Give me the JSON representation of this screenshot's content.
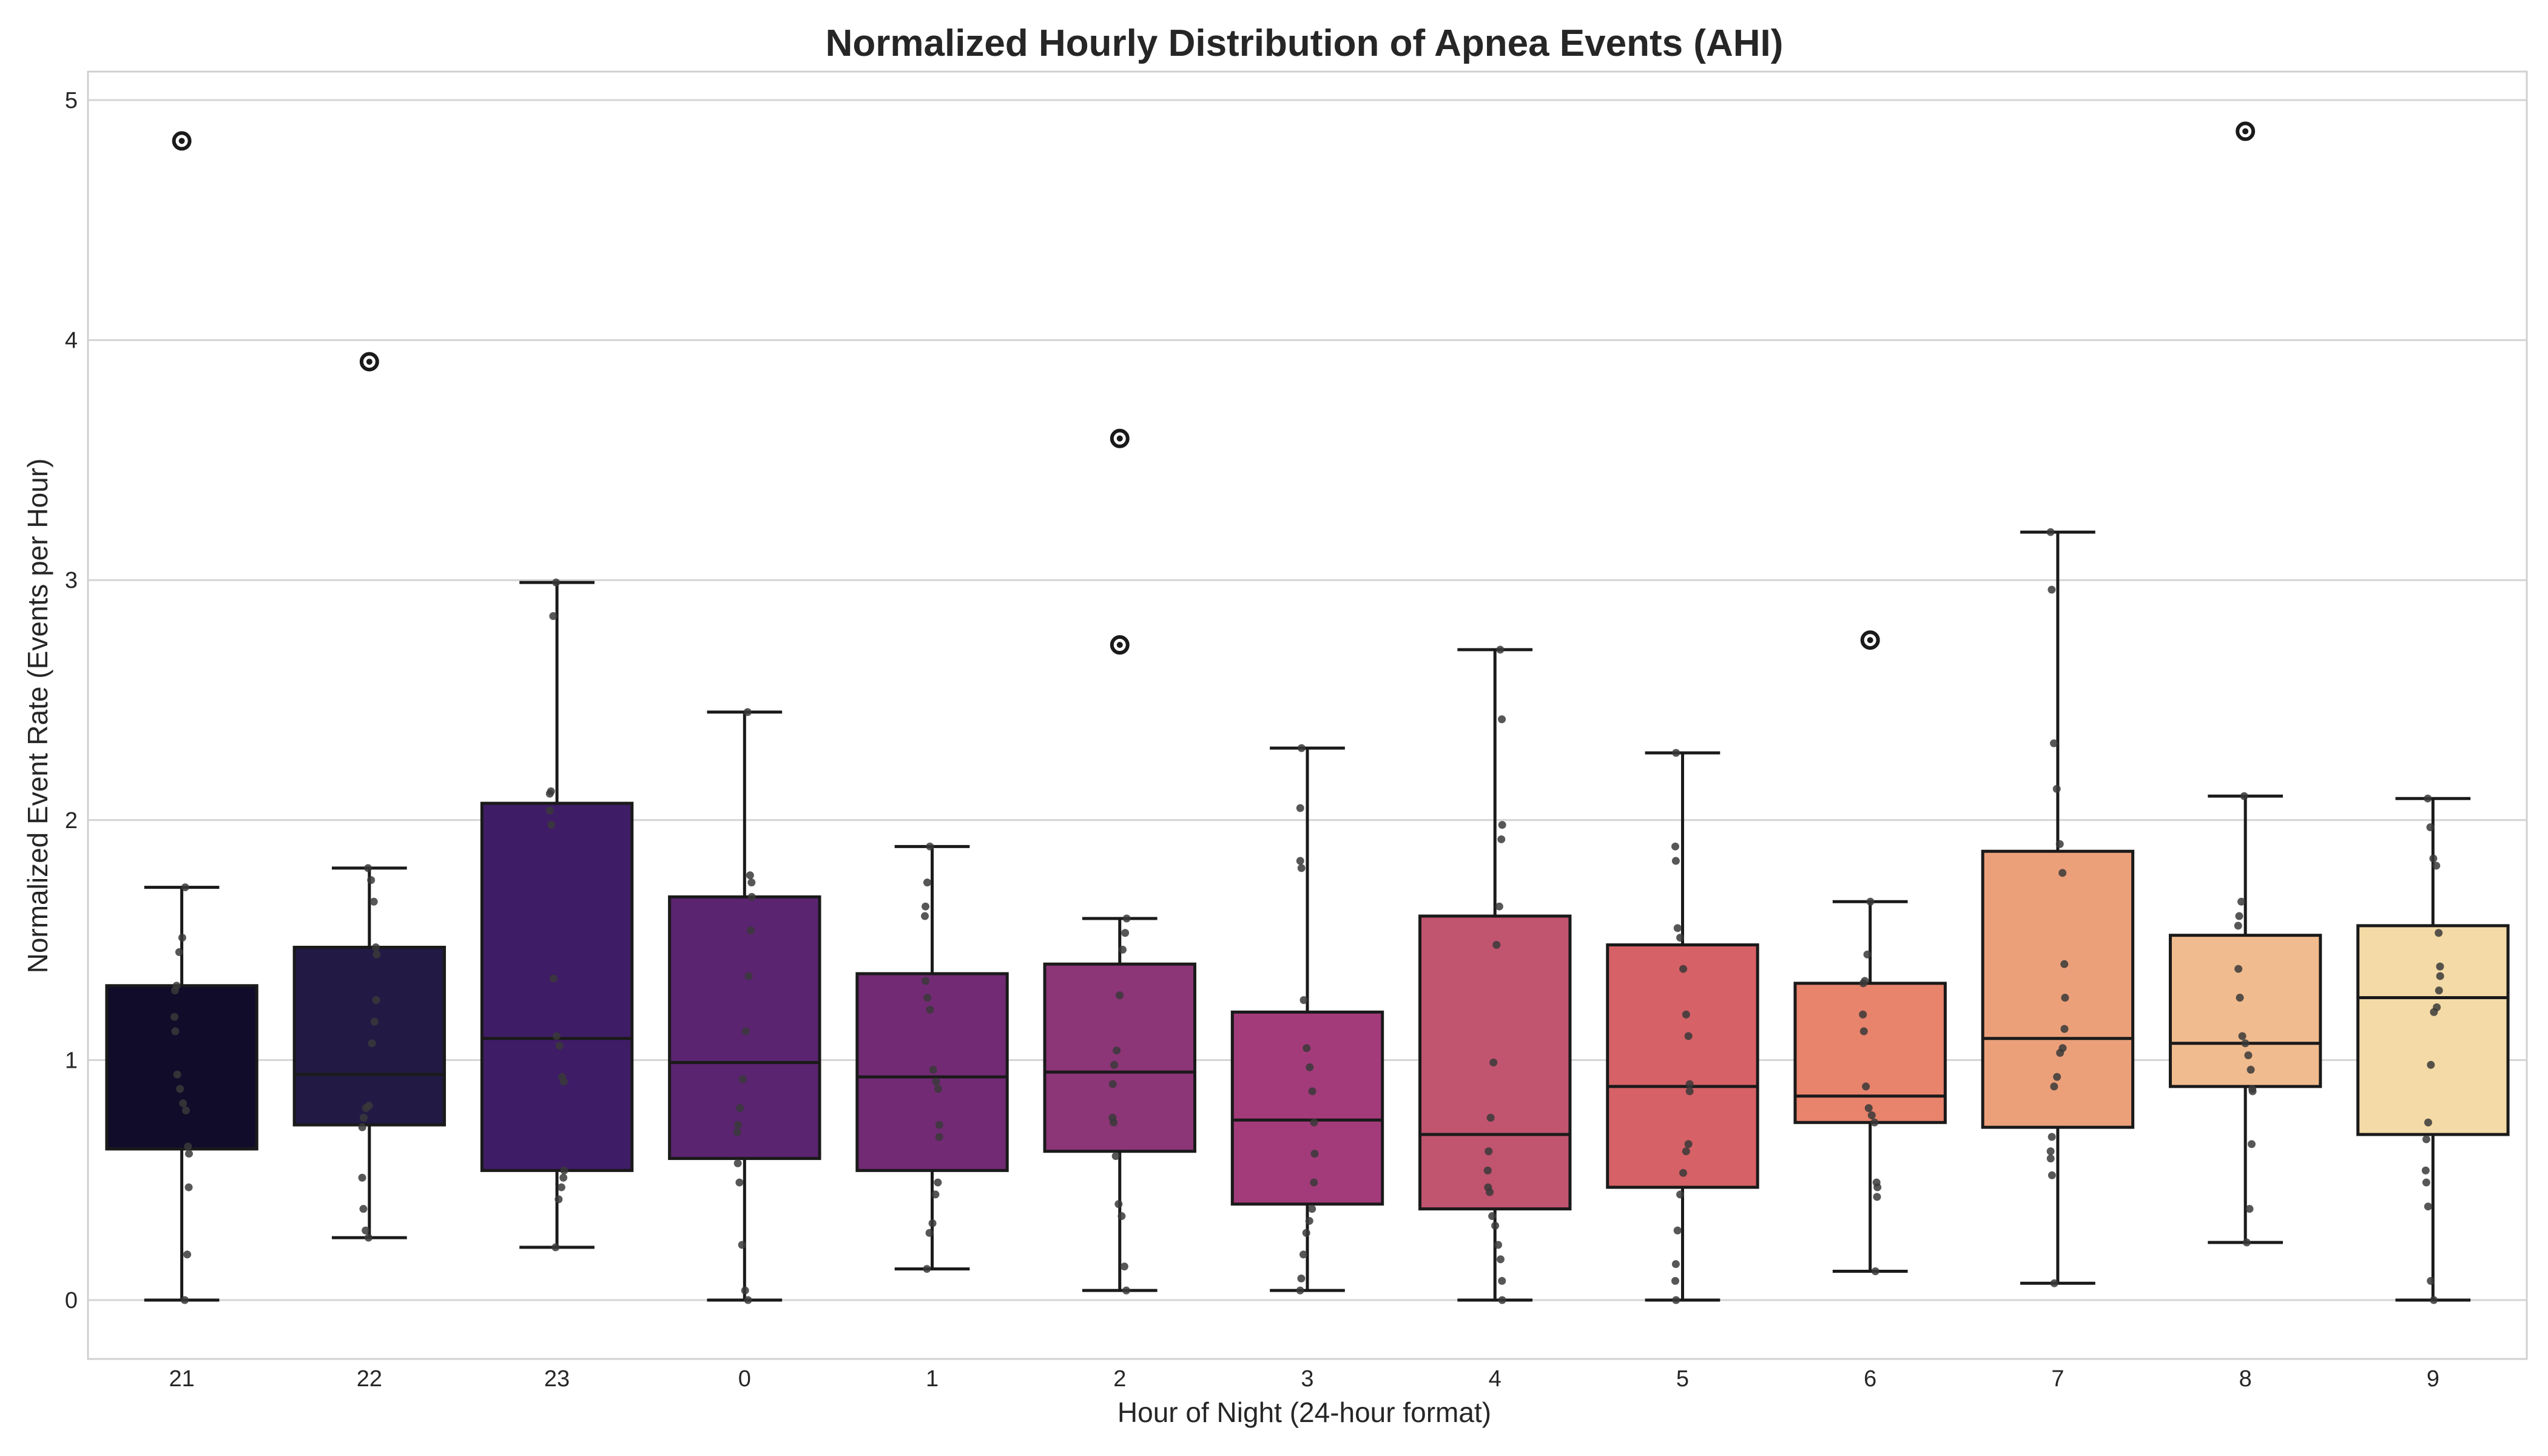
{
  "chart_data": {
    "type": "box",
    "title": "Normalized Hourly Distribution of Apnea Events (AHI)",
    "xlabel": "Hour of Night (24-hour format)",
    "ylabel": "Normalized Event Rate (Events per Hour)",
    "ylim": [
      -0.25,
      5.12
    ],
    "yticks": [
      0,
      1,
      2,
      3,
      4,
      5
    ],
    "grid": true,
    "categories": [
      "21",
      "22",
      "23",
      "0",
      "1",
      "2",
      "3",
      "4",
      "5",
      "6",
      "7",
      "8",
      "9"
    ],
    "colors": [
      "#100c2a",
      "#221a45",
      "#3f1c66",
      "#5a2470",
      "#722a74",
      "#8c3577",
      "#a33b7a",
      "#c1546f",
      "#d66166",
      "#e8836c",
      "#eca07a",
      "#f0bb8e",
      "#f3daa6"
    ],
    "boxes": [
      {
        "category": "21",
        "whisker_low": 0.0,
        "q1": 0.63,
        "median": 0.63,
        "q3": 1.31,
        "whisker_high": 1.72,
        "outliers": [
          4.83
        ],
        "points": [
          0.0,
          0.19,
          0.47,
          0.61,
          0.64,
          0.79,
          0.82,
          0.88,
          0.94,
          1.12,
          1.18,
          1.29,
          1.31,
          1.45,
          1.51,
          1.72
        ]
      },
      {
        "category": "22",
        "whisker_low": 0.26,
        "q1": 0.73,
        "median": 0.94,
        "q3": 1.47,
        "whisker_high": 1.8,
        "outliers": [
          3.91
        ],
        "points": [
          0.26,
          0.29,
          0.38,
          0.51,
          0.72,
          0.76,
          0.8,
          0.81,
          1.07,
          1.16,
          1.25,
          1.44,
          1.47,
          1.66,
          1.75,
          1.8
        ]
      },
      {
        "category": "23",
        "whisker_low": 0.22,
        "q1": 0.54,
        "median": 1.09,
        "q3": 2.07,
        "whisker_high": 2.99,
        "outliers": [],
        "points": [
          0.22,
          0.42,
          0.47,
          0.51,
          0.54,
          0.91,
          0.93,
          1.06,
          1.1,
          1.34,
          1.98,
          2.04,
          2.11,
          2.12,
          2.85,
          2.99
        ]
      },
      {
        "category": "0",
        "whisker_low": 0.0,
        "q1": 0.59,
        "median": 0.99,
        "q3": 1.68,
        "whisker_high": 2.45,
        "outliers": [],
        "points": [
          0.0,
          0.04,
          0.23,
          0.49,
          0.57,
          0.7,
          0.73,
          0.8,
          0.92,
          1.12,
          1.35,
          1.54,
          1.68,
          1.74,
          1.77,
          2.45
        ]
      },
      {
        "category": "1",
        "whisker_low": 0.13,
        "q1": 0.54,
        "median": 0.93,
        "q3": 1.36,
        "whisker_high": 1.89,
        "outliers": [],
        "points": [
          0.13,
          0.28,
          0.32,
          0.44,
          0.49,
          0.68,
          0.73,
          0.88,
          0.91,
          0.96,
          1.21,
          1.26,
          1.33,
          1.6,
          1.64,
          1.74,
          1.89
        ]
      },
      {
        "category": "2",
        "whisker_low": 0.04,
        "q1": 0.62,
        "median": 0.95,
        "q3": 1.4,
        "whisker_high": 1.59,
        "outliers": [
          3.59,
          2.73
        ],
        "points": [
          0.04,
          0.14,
          0.35,
          0.4,
          0.6,
          0.74,
          0.76,
          0.9,
          0.98,
          1.04,
          1.27,
          1.46,
          1.53,
          1.59
        ]
      },
      {
        "category": "3",
        "whisker_low": 0.04,
        "q1": 0.4,
        "median": 0.75,
        "q3": 1.2,
        "whisker_high": 2.3,
        "outliers": [],
        "points": [
          0.04,
          0.09,
          0.19,
          0.28,
          0.33,
          0.38,
          0.49,
          0.61,
          0.74,
          0.87,
          0.97,
          1.05,
          1.25,
          1.8,
          1.83,
          2.05,
          2.3
        ]
      },
      {
        "category": "4",
        "whisker_low": 0.0,
        "q1": 0.38,
        "median": 0.69,
        "q3": 1.6,
        "whisker_high": 2.71,
        "outliers": [],
        "points": [
          0.0,
          0.08,
          0.17,
          0.23,
          0.31,
          0.35,
          0.45,
          0.47,
          0.54,
          0.62,
          0.76,
          0.99,
          1.48,
          1.64,
          1.92,
          1.98,
          2.42,
          2.71
        ]
      },
      {
        "category": "5",
        "whisker_low": 0.0,
        "q1": 0.47,
        "median": 0.89,
        "q3": 1.48,
        "whisker_high": 2.28,
        "outliers": [],
        "points": [
          0.0,
          0.08,
          0.15,
          0.29,
          0.44,
          0.53,
          0.62,
          0.65,
          0.87,
          0.9,
          1.1,
          1.19,
          1.38,
          1.51,
          1.55,
          1.83,
          1.89,
          2.28
        ]
      },
      {
        "category": "6",
        "whisker_low": 0.12,
        "q1": 0.74,
        "median": 0.85,
        "q3": 1.32,
        "whisker_high": 1.66,
        "outliers": [
          2.75
        ],
        "points": [
          0.12,
          0.43,
          0.47,
          0.49,
          0.74,
          0.77,
          0.8,
          0.89,
          1.12,
          1.19,
          1.32,
          1.33,
          1.44,
          1.66
        ]
      },
      {
        "category": "7",
        "whisker_low": 0.07,
        "q1": 0.72,
        "median": 1.09,
        "q3": 1.87,
        "whisker_high": 3.2,
        "outliers": [],
        "points": [
          0.07,
          0.52,
          0.59,
          0.62,
          0.68,
          0.89,
          0.93,
          1.03,
          1.05,
          1.13,
          1.26,
          1.4,
          1.78,
          1.9,
          2.13,
          2.32,
          2.96,
          3.2
        ]
      },
      {
        "category": "8",
        "whisker_low": 0.24,
        "q1": 0.89,
        "median": 1.07,
        "q3": 1.52,
        "whisker_high": 2.1,
        "outliers": [
          4.87
        ],
        "points": [
          0.24,
          0.38,
          0.65,
          0.87,
          0.88,
          0.96,
          1.02,
          1.07,
          1.1,
          1.26,
          1.38,
          1.56,
          1.6,
          1.66,
          2.1
        ]
      },
      {
        "category": "9",
        "whisker_low": 0.0,
        "q1": 0.69,
        "median": 1.26,
        "q3": 1.56,
        "whisker_high": 2.09,
        "outliers": [],
        "points": [
          0.0,
          0.08,
          0.39,
          0.49,
          0.54,
          0.67,
          0.74,
          0.98,
          1.2,
          1.22,
          1.29,
          1.35,
          1.39,
          1.53,
          1.81,
          1.84,
          1.97,
          2.09
        ]
      }
    ]
  }
}
